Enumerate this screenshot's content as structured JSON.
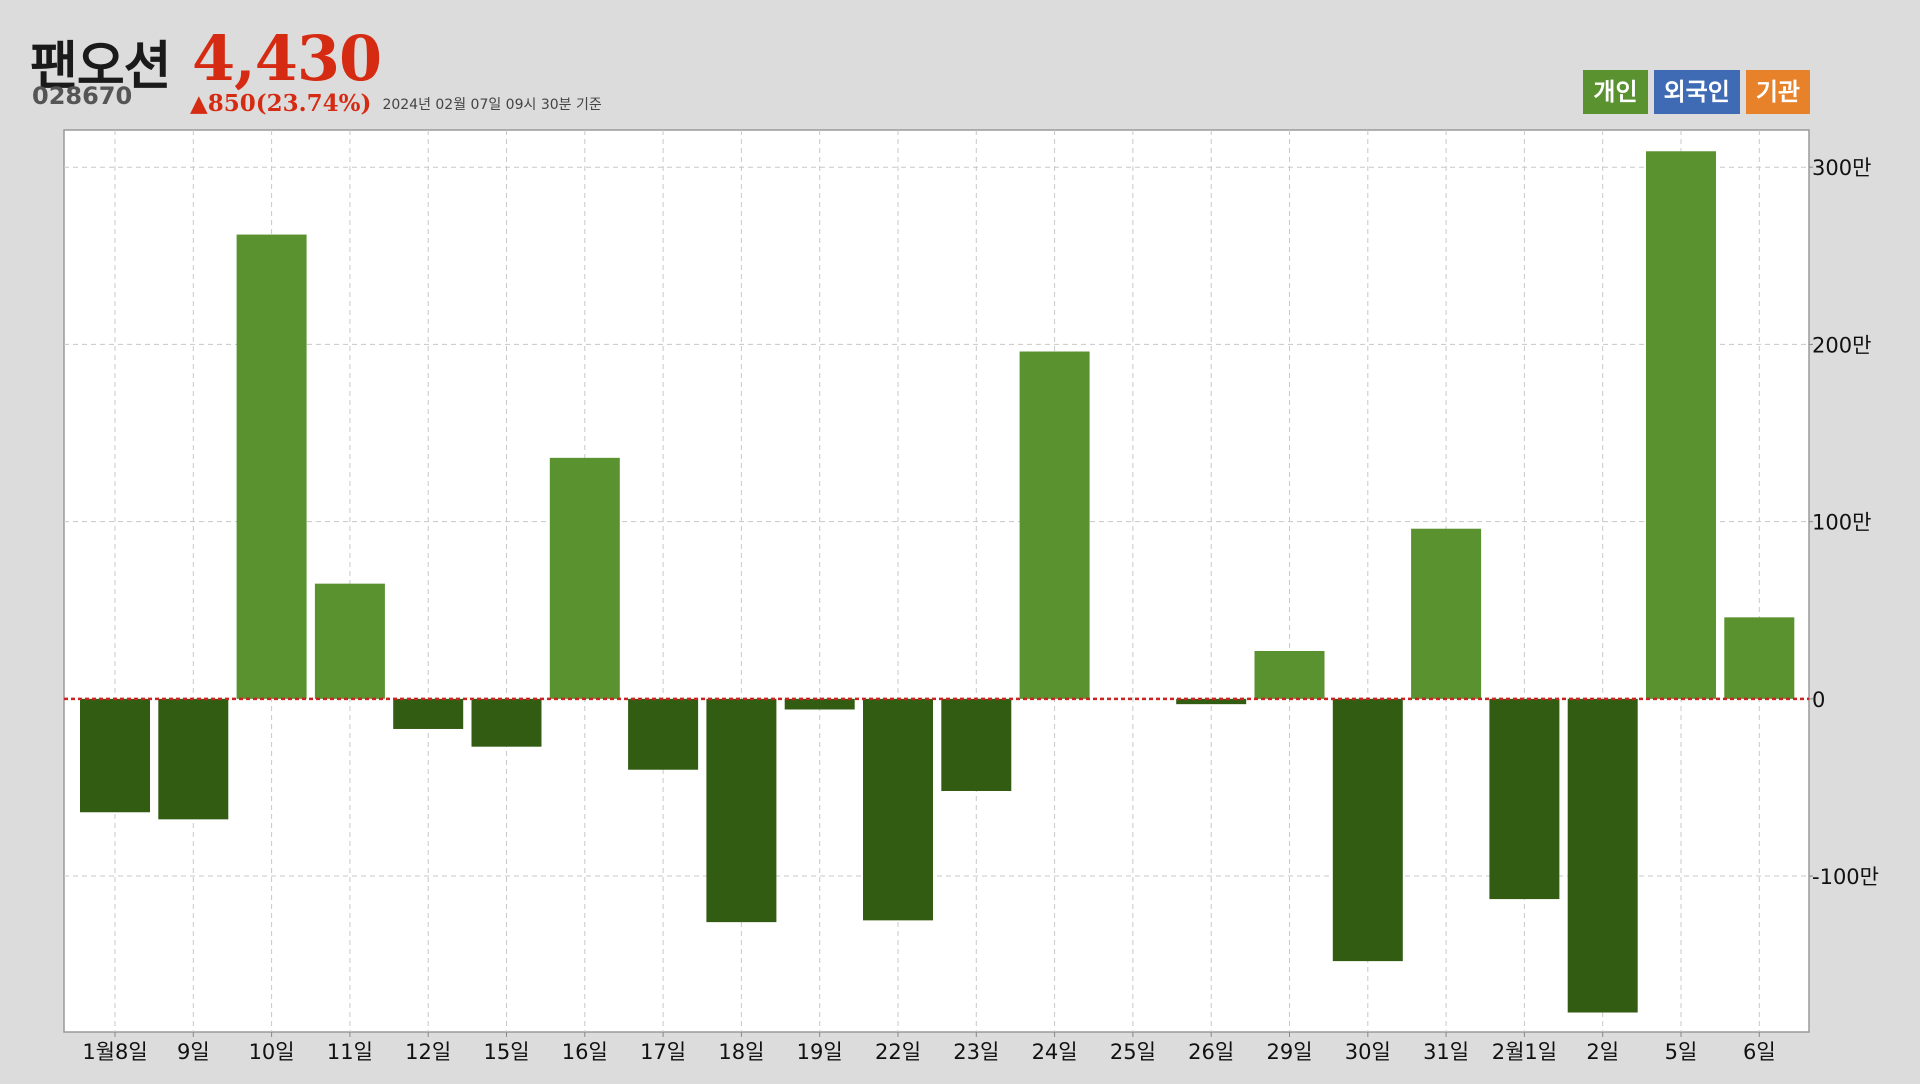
{
  "header": {
    "name": "팬오션",
    "code": "028670",
    "price": "4,430",
    "change": "▲850(23.74%)",
    "timestamp": "2024년 02월 07일 09시 30분 기준"
  },
  "legend": [
    {
      "label": "개인",
      "color": "#5a9230"
    },
    {
      "label": "외국인",
      "color": "#3f6bb5"
    },
    {
      "label": "기관",
      "color": "#e8822a"
    }
  ],
  "colors": {
    "positive": "#5a9230",
    "negative": "#335c13",
    "zero_line": "#cc2222",
    "grid": "#c8c8c8",
    "plot_bg": "#ffffff"
  },
  "chart_data": {
    "type": "bar",
    "series": [
      {
        "name": "개인",
        "values": [
          -640000,
          -680000,
          2620000,
          650000,
          -170000,
          -270000,
          1360000,
          -400000,
          -1260000,
          -60000,
          -1250000,
          -520000,
          1960000,
          0,
          -30000,
          270000,
          -1480000,
          960000,
          -1130000,
          -1770000,
          3090000,
          460000
        ]
      }
    ],
    "categories": [
      "1월8일",
      "9일",
      "10일",
      "11일",
      "12일",
      "15일",
      "16일",
      "17일",
      "18일",
      "19일",
      "22일",
      "23일",
      "24일",
      "25일",
      "26일",
      "29일",
      "30일",
      "31일",
      "2월1일",
      "2일",
      "5일",
      "6일"
    ],
    "y_ticks": [
      {
        "value": 3000000,
        "label": "300만"
      },
      {
        "value": 2000000,
        "label": "200만"
      },
      {
        "value": 1000000,
        "label": "100만"
      },
      {
        "value": 0,
        "label": "0"
      },
      {
        "value": -1000000,
        "label": "-100만"
      }
    ],
    "ylim": [
      -1880000,
      3210000
    ],
    "grid": true,
    "legend_position": "top-right"
  }
}
